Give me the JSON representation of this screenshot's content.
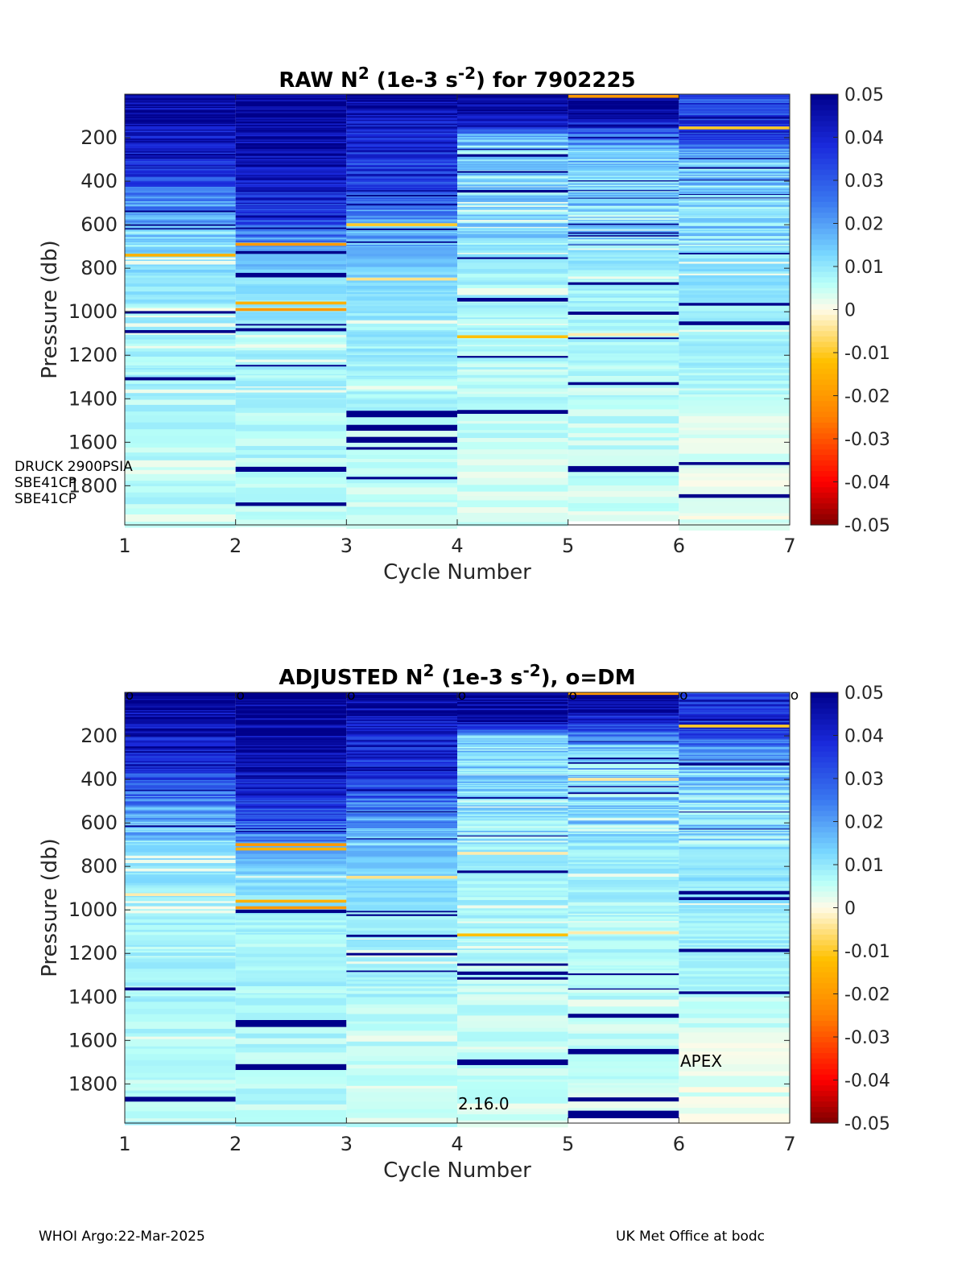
{
  "float_id": "7902225",
  "colormap": {
    "name": "jet-diverging",
    "stops": [
      "#7f0000",
      "#ff0000",
      "#ff8000",
      "#ffc000",
      "#fffbe8",
      "#b8fff8",
      "#78d6ff",
      "#3a78f0",
      "#1a2adc",
      "#00008b"
    ]
  },
  "chart_data": [
    {
      "type": "heatmap",
      "title": "RAW N",
      "title_sup": "2",
      "title_mid": " (1e-3 s",
      "title_sup2": "-2",
      "title_end": ") for 7902225",
      "xlabel": "Cycle Number",
      "ylabel": "Pressure (db)",
      "x_ticks": [
        "1",
        "2",
        "3",
        "4",
        "5",
        "6",
        "7"
      ],
      "y_ticks": [
        "200",
        "400",
        "600",
        "800",
        "1000",
        "1200",
        "1400",
        "1600",
        "1800"
      ],
      "y_tick_values": [
        200,
        400,
        600,
        800,
        1000,
        1200,
        1400,
        1600,
        1800
      ],
      "xlim": [
        1,
        7
      ],
      "ylim": [
        0,
        1980
      ],
      "y_reversed": true,
      "colorbar": {
        "ticks": [
          "0.05",
          "0.04",
          "0.03",
          "0.02",
          "0.01",
          "0",
          "-0.01",
          "-0.02",
          "-0.03",
          "-0.04",
          "-0.05"
        ],
        "range": [
          -0.05,
          0.05
        ]
      },
      "cycles": [
        {
          "cycle": 1,
          "max_pressure": 1980,
          "profile": [
            [
              0,
              0.05
            ],
            [
              120,
              0.045
            ],
            [
              320,
              0.04
            ],
            [
              480,
              0.025
            ],
            [
              600,
              0.015
            ],
            [
              800,
              0.012
            ],
            [
              1000,
              0.008
            ],
            [
              1400,
              0.007
            ],
            [
              1980,
              0.006
            ]
          ],
          "events": [
            [
              740,
              -0.015
            ],
            [
              990,
              0.0005
            ]
          ]
        },
        {
          "cycle": 2,
          "max_pressure": 1980,
          "profile": [
            [
              0,
              0.05
            ],
            [
              150,
              0.048
            ],
            [
              400,
              0.042
            ],
            [
              600,
              0.03
            ],
            [
              700,
              0.02
            ],
            [
              850,
              0.012
            ],
            [
              1100,
              0.008
            ],
            [
              1500,
              0.007
            ],
            [
              1980,
              0.006
            ]
          ],
          "events": [
            [
              690,
              -0.02
            ],
            [
              960,
              -0.015
            ],
            [
              990,
              -0.02
            ]
          ]
        },
        {
          "cycle": 3,
          "max_pressure": 1980,
          "profile": [
            [
              0,
              0.05
            ],
            [
              200,
              0.04
            ],
            [
              400,
              0.035
            ],
            [
              600,
              0.02
            ],
            [
              800,
              0.014
            ],
            [
              1000,
              0.01
            ],
            [
              1400,
              0.007
            ],
            [
              1980,
              0.004
            ]
          ],
          "events": [
            [
              600,
              -0.01
            ],
            [
              850,
              -0.005
            ]
          ]
        },
        {
          "cycle": 4,
          "max_pressure": 1980,
          "profile": [
            [
              0,
              0.05
            ],
            [
              130,
              0.045
            ],
            [
              200,
              0.015
            ],
            [
              500,
              0.01
            ],
            [
              800,
              0.009
            ],
            [
              1100,
              0.007
            ],
            [
              1500,
              0.005
            ],
            [
              1980,
              0.004
            ]
          ],
          "events": [
            [
              1115,
              -0.012
            ]
          ]
        },
        {
          "cycle": 5,
          "max_pressure": 1950,
          "profile": [
            [
              0,
              0.05
            ],
            [
              130,
              0.04
            ],
            [
              260,
              0.015
            ],
            [
              600,
              0.011
            ],
            [
              900,
              0.008
            ],
            [
              1300,
              0.006
            ],
            [
              1980,
              0.004
            ]
          ],
          "events": [
            [
              10,
              -0.02
            ],
            [
              1105,
              -0.003
            ]
          ]
        },
        {
          "cycle": 6,
          "max_pressure": 1980,
          "profile": [
            [
              0,
              0.03
            ],
            [
              150,
              0.04
            ],
            [
              300,
              0.015
            ],
            [
              600,
              0.012
            ],
            [
              900,
              0.01
            ],
            [
              1300,
              0.007
            ],
            [
              1600,
              0.003
            ],
            [
              1980,
              0.002
            ]
          ],
          "events": [
            [
              155,
              -0.01
            ]
          ]
        }
      ],
      "dm_markers": []
    },
    {
      "type": "heatmap",
      "title": "ADJUSTED N",
      "title_sup": "2",
      "title_mid": " (1e-3 s",
      "title_sup2": "-2",
      "title_end": "), o=DM",
      "xlabel": "Cycle Number",
      "ylabel": "Pressure (db)",
      "x_ticks": [
        "1",
        "2",
        "3",
        "4",
        "5",
        "6",
        "7"
      ],
      "y_ticks": [
        "200",
        "400",
        "600",
        "800",
        "1000",
        "1200",
        "1400",
        "1600",
        "1800"
      ],
      "y_tick_values": [
        200,
        400,
        600,
        800,
        1000,
        1200,
        1400,
        1600,
        1800
      ],
      "xlim": [
        1,
        7
      ],
      "ylim": [
        0,
        1980
      ],
      "y_reversed": true,
      "colorbar": {
        "ticks": [
          "0.05",
          "0.04",
          "0.03",
          "0.02",
          "0.01",
          "0",
          "-0.01",
          "-0.02",
          "-0.03",
          "-0.04",
          "-0.05"
        ],
        "range": [
          -0.05,
          0.05
        ]
      },
      "cycles": [
        {
          "cycle": 1,
          "max_pressure": 1980,
          "profile": [
            [
              0,
              0.05
            ],
            [
              120,
              0.045
            ],
            [
              320,
              0.04
            ],
            [
              480,
              0.025
            ],
            [
              600,
              0.015
            ],
            [
              800,
              0.012
            ],
            [
              1000,
              0.008
            ],
            [
              1400,
              0.007
            ],
            [
              1980,
              0.006
            ]
          ],
          "events": [
            [
              930,
              -0.003
            ],
            [
              990,
              0.0005
            ]
          ]
        },
        {
          "cycle": 2,
          "max_pressure": 1980,
          "profile": [
            [
              0,
              0.05
            ],
            [
              150,
              0.048
            ],
            [
              400,
              0.042
            ],
            [
              600,
              0.03
            ],
            [
              700,
              0.02
            ],
            [
              850,
              0.012
            ],
            [
              1100,
              0.008
            ],
            [
              1500,
              0.007
            ],
            [
              1980,
              0.006
            ]
          ],
          "events": [
            [
              700,
              -0.02
            ],
            [
              720,
              -0.015
            ],
            [
              960,
              -0.015
            ],
            [
              990,
              -0.02
            ]
          ]
        },
        {
          "cycle": 3,
          "max_pressure": 1980,
          "profile": [
            [
              0,
              0.05
            ],
            [
              200,
              0.04
            ],
            [
              400,
              0.035
            ],
            [
              600,
              0.02
            ],
            [
              800,
              0.014
            ],
            [
              1000,
              0.01
            ],
            [
              1400,
              0.007
            ],
            [
              1980,
              0.004
            ]
          ],
          "events": [
            [
              850,
              -0.005
            ]
          ]
        },
        {
          "cycle": 4,
          "max_pressure": 1980,
          "profile": [
            [
              0,
              0.05
            ],
            [
              130,
              0.045
            ],
            [
              200,
              0.015
            ],
            [
              500,
              0.01
            ],
            [
              800,
              0.009
            ],
            [
              1100,
              0.007
            ],
            [
              1500,
              0.005
            ],
            [
              1980,
              0.004
            ]
          ],
          "events": [
            [
              740,
              -0.003
            ],
            [
              1115,
              -0.012
            ]
          ]
        },
        {
          "cycle": 5,
          "max_pressure": 1950,
          "profile": [
            [
              0,
              0.05
            ],
            [
              130,
              0.04
            ],
            [
              260,
              0.015
            ],
            [
              600,
              0.011
            ],
            [
              900,
              0.008
            ],
            [
              1300,
              0.006
            ],
            [
              1980,
              0.004
            ]
          ],
          "events": [
            [
              5,
              -0.02
            ],
            [
              400,
              -0.004
            ],
            [
              1105,
              -0.003
            ]
          ]
        },
        {
          "cycle": 6,
          "max_pressure": 1980,
          "profile": [
            [
              0,
              0.03
            ],
            [
              150,
              0.04
            ],
            [
              300,
              0.015
            ],
            [
              600,
              0.012
            ],
            [
              900,
              0.01
            ],
            [
              1300,
              0.007
            ],
            [
              1600,
              0.003
            ],
            [
              1980,
              0.002
            ]
          ],
          "events": [
            [
              155,
              -0.01
            ]
          ]
        }
      ],
      "dm_markers": [
        1,
        2,
        3,
        4,
        5,
        6,
        7
      ],
      "dm_marker_symbol": "o"
    }
  ],
  "annotations": {
    "sensors": [
      "DRUCK 2900PSIA",
      "SBE41CP",
      "SBE41CP"
    ],
    "platform": "APEX",
    "firmware": "2.16.0"
  },
  "footer": {
    "left": "WHOI Argo:22-Mar-2025",
    "right": "UK Met Office at bodc"
  }
}
